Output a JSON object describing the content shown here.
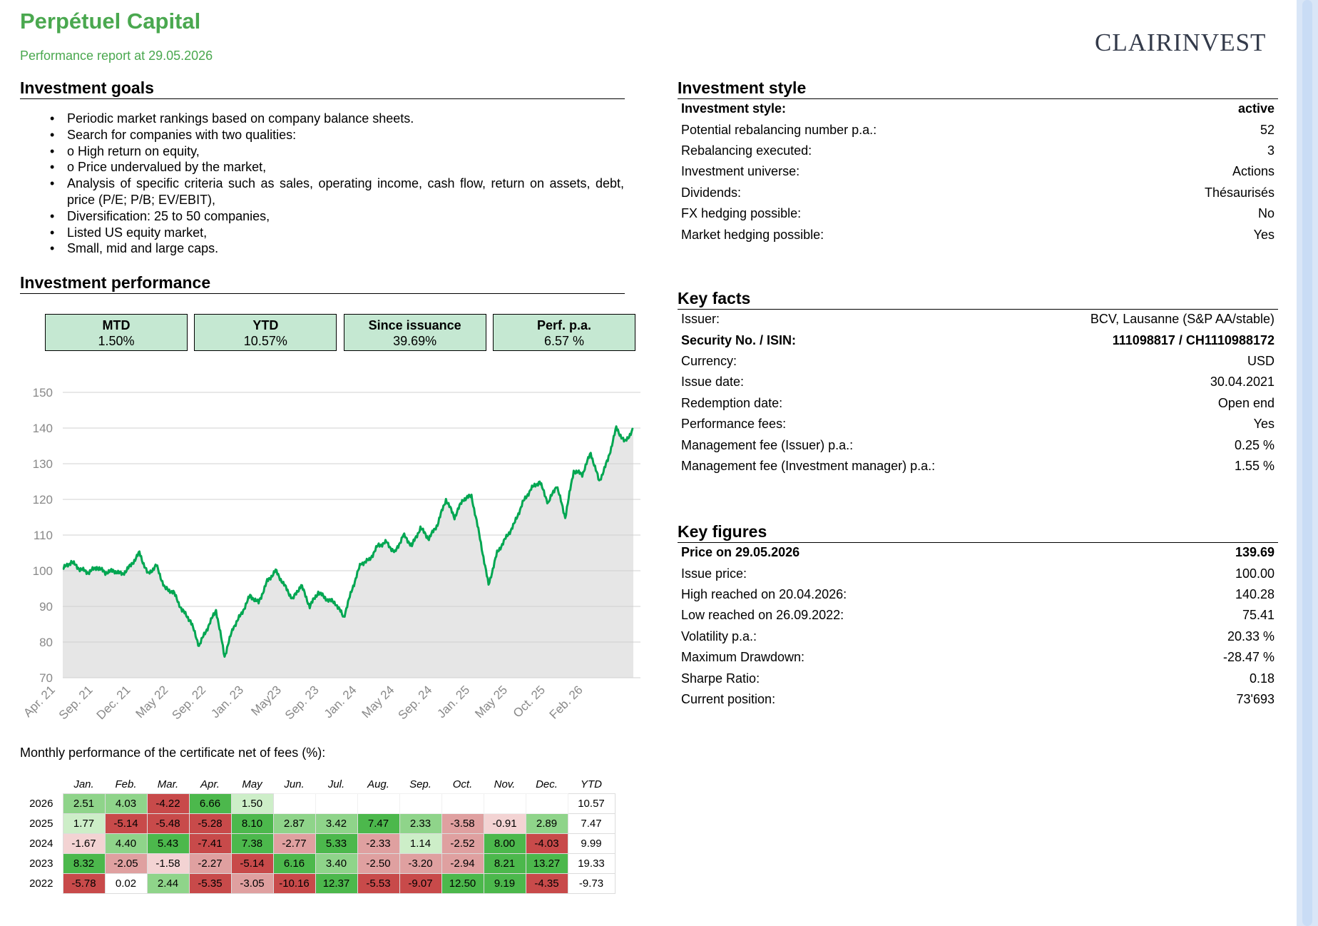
{
  "header": {
    "title": "Perpétuel Capital",
    "subtitle": "Performance report at 29.05.2026",
    "logo_text": "CLAIRINVEST"
  },
  "goals": {
    "heading": "Investment goals",
    "items": [
      "Periodic market rankings based on company balance sheets.",
      "Search for companies with two qualities:",
      "o High return on equity,",
      "o Price undervalued by the market,",
      "Analysis of specific criteria such as sales, operating income, cash flow, return on assets, debt, price (P/E; P/B; EV/EBIT),",
      "Diversification: 25 to 50 companies,",
      "Listed US equity market,",
      "Small, mid and large caps."
    ]
  },
  "performance": {
    "heading": "Investment performance",
    "kpis": [
      {
        "label": "MTD",
        "value": "1.50%"
      },
      {
        "label": "YTD",
        "value": "10.57%"
      },
      {
        "label": "Since issuance",
        "value": "39.69%"
      },
      {
        "label": "Perf. p.a.",
        "value": "6.57 %"
      }
    ]
  },
  "chart_data": {
    "type": "area",
    "ylim": [
      70,
      150
    ],
    "yticks": [
      70,
      80,
      90,
      100,
      110,
      120,
      130,
      140,
      150
    ],
    "xtick_labels": [
      "Apr. 21",
      "Sep. 21",
      "Dec. 21",
      "May 22",
      "Sep. 22",
      "Jan. 23",
      "May23",
      "Sep. 23",
      "Jan. 24",
      "May 24",
      "Sep. 24",
      "Jan. 25",
      "May 25",
      "Oct. 25",
      "Feb. 26"
    ],
    "grid": true,
    "line_color": "#00a651",
    "fill_color": "#e6e6e6",
    "series": [
      {
        "x": "2021-04",
        "y": 100.5
      },
      {
        "x": "2021-05",
        "y": 102.5
      },
      {
        "x": "2021-06",
        "y": 100.5
      },
      {
        "x": "2021-07",
        "y": 99.5
      },
      {
        "x": "2021-08",
        "y": 101.0
      },
      {
        "x": "2021-09",
        "y": 99.5
      },
      {
        "x": "2021-10",
        "y": 100.0
      },
      {
        "x": "2021-11",
        "y": 99.0
      },
      {
        "x": "2021-12",
        "y": 101.5
      },
      {
        "x": "2022-01",
        "y": 105.0
      },
      {
        "x": "2022-02",
        "y": 99.0
      },
      {
        "x": "2022-03",
        "y": 101.5
      },
      {
        "x": "2022-04",
        "y": 95.0
      },
      {
        "x": "2022-05",
        "y": 94.0
      },
      {
        "x": "2022-06",
        "y": 89.0
      },
      {
        "x": "2022-07",
        "y": 86.0
      },
      {
        "x": "2022-08",
        "y": 79.0
      },
      {
        "x": "2022-09",
        "y": 84.0
      },
      {
        "x": "2022-10",
        "y": 89.0
      },
      {
        "x": "2022-11",
        "y": 76.0
      },
      {
        "x": "2022-12",
        "y": 84.0
      },
      {
        "x": "2023-01",
        "y": 88.0
      },
      {
        "x": "2023-02",
        "y": 93.0
      },
      {
        "x": "2023-03",
        "y": 91.0
      },
      {
        "x": "2023-04",
        "y": 97.0
      },
      {
        "x": "2023-05",
        "y": 100.0
      },
      {
        "x": "2023-06",
        "y": 96.0
      },
      {
        "x": "2023-07",
        "y": 92.0
      },
      {
        "x": "2023-08",
        "y": 96.0
      },
      {
        "x": "2023-09",
        "y": 90.0
      },
      {
        "x": "2023-10",
        "y": 94.0
      },
      {
        "x": "2023-11",
        "y": 92.0
      },
      {
        "x": "2023-12",
        "y": 91.0
      },
      {
        "x": "2024-01",
        "y": 87.0
      },
      {
        "x": "2024-02",
        "y": 95.0
      },
      {
        "x": "2024-03",
        "y": 102.0
      },
      {
        "x": "2024-04",
        "y": 103.0
      },
      {
        "x": "2024-05",
        "y": 107.0
      },
      {
        "x": "2024-06",
        "y": 108.0
      },
      {
        "x": "2024-07",
        "y": 105.0
      },
      {
        "x": "2024-08",
        "y": 110.0
      },
      {
        "x": "2024-09",
        "y": 107.0
      },
      {
        "x": "2024-10",
        "y": 112.0
      },
      {
        "x": "2024-11",
        "y": 109.0
      },
      {
        "x": "2024-12",
        "y": 113.0
      },
      {
        "x": "2025-01",
        "y": 120.0
      },
      {
        "x": "2025-02",
        "y": 115.0
      },
      {
        "x": "2025-03",
        "y": 120.0
      },
      {
        "x": "2025-04",
        "y": 121.0
      },
      {
        "x": "2025-05",
        "y": 109.0
      },
      {
        "x": "2025-06",
        "y": 96.0
      },
      {
        "x": "2025-07",
        "y": 105.0
      },
      {
        "x": "2025-08",
        "y": 109.0
      },
      {
        "x": "2025-09",
        "y": 113.0
      },
      {
        "x": "2025-10",
        "y": 119.0
      },
      {
        "x": "2025-11",
        "y": 123.0
      },
      {
        "x": "2025-12",
        "y": 125.0
      },
      {
        "x": "2026-01",
        "y": 119.0
      },
      {
        "x": "2026-02",
        "y": 124.0
      },
      {
        "x": "2026-03",
        "y": 115.0
      },
      {
        "x": "2026-04",
        "y": 128.0
      },
      {
        "x": "2026-05",
        "y": 127.0
      },
      {
        "x": "2026-06",
        "y": 133.0
      },
      {
        "x": "2026-07",
        "y": 125.0
      },
      {
        "x": "2026-08",
        "y": 131.0
      },
      {
        "x": "2026-09",
        "y": 140.0
      },
      {
        "x": "2026-10",
        "y": 136.0
      },
      {
        "x": "2026-11",
        "y": 139.7
      }
    ]
  },
  "monthly": {
    "title": "Monthly performance of the certificate net of fees (%):",
    "headers": [
      "Jan.",
      "Feb.",
      "Mar.",
      "Apr.",
      "May",
      "Jun.",
      "Jul.",
      "Aug.",
      "Sep.",
      "Oct.",
      "Nov.",
      "Dec.",
      "YTD"
    ],
    "rows": [
      {
        "year": "2026",
        "values": [
          "2.51",
          "4.03",
          "-4.22",
          "6.66",
          "1.50",
          "",
          "",
          "",
          "",
          "",
          "",
          ""
        ],
        "ytd": "10.57"
      },
      {
        "year": "2025",
        "values": [
          "1.77",
          "-5.14",
          "-5.48",
          "-5.28",
          "8.10",
          "2.87",
          "3.42",
          "7.47",
          "2.33",
          "-3.58",
          "-0.91",
          "2.89"
        ],
        "ytd": "7.47"
      },
      {
        "year": "2024",
        "values": [
          "-1.67",
          "4.40",
          "5.43",
          "-7.41",
          "7.38",
          "-2.77",
          "5.33",
          "-2.33",
          "1.14",
          "-2.52",
          "8.00",
          "-4.03"
        ],
        "ytd": "9.99"
      },
      {
        "year": "2023",
        "values": [
          "8.32",
          "-2.05",
          "-1.58",
          "-2.27",
          "-5.14",
          "6.16",
          "3.40",
          "-2.50",
          "-3.20",
          "-2.94",
          "8.21",
          "13.27"
        ],
        "ytd": "19.33"
      },
      {
        "year": "2022",
        "values": [
          "-5.78",
          "0.02",
          "2.44",
          "-5.35",
          "-3.05",
          "-10.16",
          "12.37",
          "-5.53",
          "-9.07",
          "12.50",
          "9.19",
          "-4.35"
        ],
        "ytd": "-9.73"
      }
    ]
  },
  "style": {
    "heading": "Investment style",
    "rows": [
      {
        "label": "Investment style:",
        "value": "active",
        "bold": true
      },
      {
        "label": "Potential rebalancing number p.a.:",
        "value": "52",
        "bold": false
      },
      {
        "label": "Rebalancing executed:",
        "value": "3",
        "bold": false
      },
      {
        "label": "Investment universe:",
        "value": "Actions",
        "bold": false
      },
      {
        "label": "Dividends:",
        "value": "Thésaurisés",
        "bold": false
      },
      {
        "label": "FX hedging possible:",
        "value": "No",
        "bold": false
      },
      {
        "label": "Market hedging possible:",
        "value": "Yes",
        "bold": false
      }
    ]
  },
  "facts": {
    "heading": "Key facts",
    "rows": [
      {
        "label": "Issuer:",
        "value": "BCV, Lausanne (S&P AA/stable)",
        "bold": false
      },
      {
        "label": "Security No. / ISIN:",
        "value": "111098817 / CH1110988172",
        "bold": true
      },
      {
        "label": "Currency:",
        "value": "USD",
        "bold": false
      },
      {
        "label": "Issue date:",
        "value": "30.04.2021",
        "bold": false
      },
      {
        "label": "Redemption date:",
        "value": "Open end",
        "bold": false
      },
      {
        "label": "Performance fees:",
        "value": "Yes",
        "bold": false
      },
      {
        "label": "Management fee (Issuer) p.a.:",
        "value": "0.25 %",
        "bold": false
      },
      {
        "label": "Management fee (Investment manager) p.a.:",
        "value": "1.55 %",
        "bold": false
      }
    ]
  },
  "figures": {
    "heading": "Key figures",
    "rows": [
      {
        "label": "Price on 29.05.2026",
        "value": "139.69",
        "bold": true
      },
      {
        "label": "Issue price:",
        "value": "100.00",
        "bold": false
      },
      {
        "label": "High reached on 20.04.2026:",
        "value": "140.28",
        "bold": false
      },
      {
        "label": "Low reached on 26.09.2022:",
        "value": "75.41",
        "bold": false
      },
      {
        "label": "Volatility p.a.:",
        "value": "20.33 %",
        "bold": false
      },
      {
        "label": "Maximum Drawdown:",
        "value": "-28.47 %",
        "bold": false
      },
      {
        "label": "Sharpe Ratio:",
        "value": "0.18",
        "bold": false
      },
      {
        "label": "Current position:",
        "value": "73'693",
        "bold": false
      }
    ]
  }
}
